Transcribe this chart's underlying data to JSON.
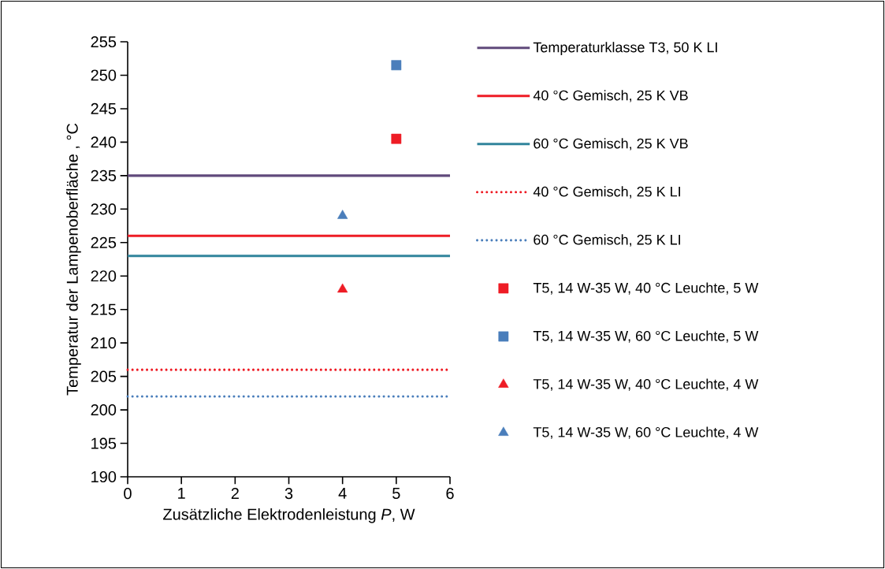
{
  "chart_data": {
    "type": "scatter",
    "xlabel": "Zusätzliche Elektrodenleistung *P*, W",
    "ylabel": "Temperatur der Lampenoberfläche , °C",
    "xlim": [
      0,
      6
    ],
    "ylim": [
      190,
      255
    ],
    "xticks": [
      0,
      1,
      2,
      3,
      4,
      5,
      6
    ],
    "yticks": [
      190,
      195,
      200,
      205,
      210,
      215,
      220,
      225,
      230,
      235,
      240,
      245,
      250,
      255
    ],
    "legend": "right",
    "series": [
      {
        "name": "Temperaturklasse T3, 50 K LI",
        "type": "line",
        "color": "#604a7b",
        "x": [
          0,
          6
        ],
        "values": [
          235,
          235
        ],
        "line_style": "solid",
        "marker": "none"
      },
      {
        "name": "40 °C Gemisch, 25 K VB",
        "type": "line",
        "color": "#ee1c25",
        "x": [
          0,
          6
        ],
        "values": [
          226,
          226
        ],
        "line_style": "solid",
        "marker": "none"
      },
      {
        "name": "60 °C Gemisch, 25 K VB",
        "type": "line",
        "color": "#31859c",
        "x": [
          0,
          6
        ],
        "values": [
          223,
          223
        ],
        "line_style": "solid",
        "marker": "none"
      },
      {
        "name": "40 °C Gemisch, 25 K LI",
        "type": "line",
        "color": "#ee1c25",
        "x": [
          0,
          6
        ],
        "values": [
          206,
          206
        ],
        "line_style": "dotted",
        "marker": "none"
      },
      {
        "name": "60 °C Gemisch, 25 K LI",
        "type": "line",
        "color": "#4a7ebb",
        "x": [
          0,
          6
        ],
        "values": [
          202,
          202
        ],
        "line_style": "dotted",
        "marker": "none"
      },
      {
        "name": "T5, 14 W-35 W, 40 °C Leuchte, 5 W",
        "color": "#ee1c25",
        "x": [
          5
        ],
        "values": [
          240.5
        ],
        "marker": "square"
      },
      {
        "name": "T5, 14 W-35 W, 60 °C Leuchte, 5 W",
        "color": "#4a7ebb",
        "x": [
          5
        ],
        "values": [
          251.5
        ],
        "marker": "square"
      },
      {
        "name": "T5, 14 W-35 W, 40 °C Leuchte, 4 W",
        "color": "#ee1c25",
        "x": [
          4
        ],
        "values": [
          218
        ],
        "marker": "triangle"
      },
      {
        "name": "T5, 14 W-35 W, 60 °C Leuchte, 4 W",
        "color": "#4a7ebb",
        "x": [
          4
        ],
        "values": [
          229
        ],
        "marker": "triangle"
      }
    ]
  }
}
